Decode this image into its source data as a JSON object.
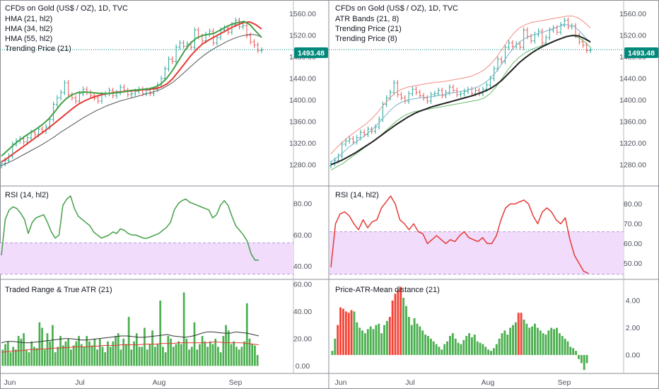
{
  "colors": {
    "up": "#26a69a",
    "down": "#ef5350",
    "green": "#43a047",
    "red": "#e53935",
    "grey": "#555555",
    "black": "#222222",
    "lavender": "#f1dcfb",
    "dashed": "#b59ad8",
    "price": "#00897b",
    "bar_green": "#4caf50",
    "bar_red": "#f44336"
  },
  "x_labels": [
    "Jun",
    "Jul",
    "Aug",
    "Sep"
  ],
  "panels": {
    "left_price": {
      "legend": [
        "CFDs on Gold (US$ / OZ), 1D, TVC",
        "HMA (21, hl2)",
        "HMA (34, hl2)",
        "HMA (55, hl2)",
        "Trending Price (21)"
      ],
      "price_tag": "1493.48"
    },
    "right_price": {
      "legend": [
        "CFDs on Gold (US$ / OZ), 1D, TVC",
        "ATR Bands (21, 8)",
        "Trending Price (21)",
        "Trending Price (8)"
      ],
      "price_tag": "1493.48"
    },
    "left_rsi": {
      "legend": [
        "RSI (14, hl2)"
      ]
    },
    "right_rsi": {
      "legend": [
        "RSI (14, hl2)"
      ]
    },
    "left_atr": {
      "legend": [
        "Traded Range & True ATR (21)"
      ]
    },
    "right_dist": {
      "legend": [
        "Price-ATR-Mean distance (21)"
      ]
    }
  },
  "chart_data": [
    {
      "type": "line",
      "panel": "left_price",
      "ylim": [
        1260,
        1570
      ],
      "yticks": [
        "1560.00",
        "1520.00",
        "1480.00",
        "1440.00",
        "1400.00",
        "1360.00",
        "1320.00",
        "1280.00"
      ],
      "closes": [
        1282,
        1288,
        1296,
        1318,
        1324,
        1328,
        1322,
        1330,
        1340,
        1336,
        1346,
        1342,
        1350,
        1364,
        1392,
        1404,
        1414,
        1432,
        1410,
        1404,
        1398,
        1412,
        1420,
        1414,
        1408,
        1404,
        1398,
        1410,
        1412,
        1418,
        1408,
        1414,
        1424,
        1418,
        1410,
        1412,
        1416,
        1420,
        1412,
        1418,
        1412,
        1420,
        1428,
        1440,
        1458,
        1476,
        1472,
        1498,
        1506,
        1500,
        1504,
        1498,
        1530,
        1518,
        1510,
        1522,
        1528,
        1506,
        1516,
        1530,
        1534,
        1526,
        1540,
        1548,
        1536,
        1538,
        1520,
        1508,
        1502,
        1492,
        1493
      ],
      "series": [
        {
          "name": "HMA (21, hl2)",
          "values": [
            1296,
            1306,
            1316,
            1325,
            1333,
            1340,
            1347,
            1355,
            1365,
            1378,
            1392,
            1403,
            1410,
            1414,
            1415,
            1414,
            1413,
            1412,
            1412,
            1413,
            1414,
            1416,
            1418,
            1419,
            1420,
            1421,
            1424,
            1430,
            1441,
            1456,
            1474,
            1492,
            1506,
            1515,
            1520,
            1522,
            1524,
            1530,
            1536,
            1541,
            1544,
            1546,
            1540,
            1528,
            1516
          ]
        },
        {
          "name": "HMA (34, hl2)",
          "values": [
            1285,
            1292,
            1300,
            1308,
            1316,
            1324,
            1332,
            1340,
            1348,
            1357,
            1366,
            1375,
            1384,
            1392,
            1398,
            1403,
            1407,
            1410,
            1412,
            1414,
            1415,
            1416,
            1417,
            1418,
            1419,
            1420,
            1421,
            1424,
            1430,
            1440,
            1454,
            1468,
            1482,
            1494,
            1504,
            1511,
            1517,
            1523,
            1529,
            1535,
            1540,
            1544,
            1545,
            1540,
            1532
          ]
        },
        {
          "name": "HMA (55, hl2)",
          "values": [
            1278,
            1283,
            1288,
            1294,
            1300,
            1306,
            1312,
            1318,
            1325,
            1332,
            1340,
            1347,
            1354,
            1361,
            1368,
            1374,
            1380,
            1385,
            1390,
            1394,
            1398,
            1401,
            1404,
            1407,
            1410,
            1413,
            1416,
            1420,
            1426,
            1433,
            1442,
            1452,
            1462,
            1472,
            1481,
            1489,
            1496,
            1502,
            1508,
            1513,
            1517,
            1520,
            1522,
            1521,
            1517
          ]
        }
      ]
    },
    {
      "type": "line",
      "panel": "right_price",
      "ylim": [
        1260,
        1570
      ],
      "yticks": [
        "1560.00",
        "1520.00",
        "1480.00",
        "1440.00",
        "1400.00",
        "1360.00",
        "1320.00",
        "1280.00"
      ],
      "series": [
        {
          "name": "ATR Bands upper",
          "values": [
            1300,
            1312,
            1322,
            1332,
            1340,
            1348,
            1356,
            1366,
            1378,
            1392,
            1404,
            1414,
            1420,
            1424,
            1426,
            1428,
            1430,
            1432,
            1433,
            1434,
            1436,
            1438,
            1440,
            1442,
            1445,
            1450,
            1456,
            1466,
            1478,
            1494,
            1510,
            1524,
            1534,
            1540,
            1544,
            1546,
            1548,
            1550,
            1552,
            1554,
            1556,
            1556,
            1552,
            1544,
            1534
          ]
        },
        {
          "name": "ATR Bands lower",
          "values": [
            1270,
            1276,
            1282,
            1290,
            1298,
            1306,
            1314,
            1322,
            1330,
            1340,
            1350,
            1360,
            1368,
            1374,
            1378,
            1380,
            1382,
            1384,
            1386,
            1388,
            1390,
            1392,
            1394,
            1396,
            1398,
            1400,
            1404,
            1412,
            1424,
            1440,
            1456,
            1470,
            1480,
            1488,
            1494,
            1498,
            1502,
            1506,
            1510,
            1514,
            1518,
            1520,
            1516,
            1508,
            1498
          ]
        },
        {
          "name": "Trending Price (21)",
          "values": [
            1280,
            1284,
            1289,
            1295,
            1301,
            1308,
            1315,
            1322,
            1330,
            1338,
            1346,
            1354,
            1361,
            1368,
            1374,
            1379,
            1383,
            1387,
            1390,
            1393,
            1396,
            1399,
            1402,
            1405,
            1408,
            1412,
            1416,
            1421,
            1428,
            1437,
            1448,
            1459,
            1470,
            1479,
            1487,
            1494,
            1500,
            1505,
            1510,
            1514,
            1518,
            1520,
            1519,
            1514,
            1508
          ]
        },
        {
          "name": "Trending Price (8)",
          "values": [
            1285,
            1293,
            1302,
            1312,
            1320,
            1328,
            1336,
            1345,
            1356,
            1368,
            1380,
            1390,
            1396,
            1400,
            1402,
            1404,
            1405,
            1406,
            1408,
            1410,
            1412,
            1414,
            1416,
            1418,
            1421,
            1425,
            1431,
            1440,
            1452,
            1467,
            1483,
            1497,
            1508,
            1515,
            1520,
            1523,
            1526,
            1530,
            1534,
            1538,
            1540,
            1538,
            1530,
            1518,
            1506
          ]
        }
      ]
    },
    {
      "type": "line",
      "panel": "left_rsi",
      "ylim": [
        33,
        90
      ],
      "yticks": [
        "80.00",
        "60.00",
        "40.00"
      ],
      "band": [
        35,
        55
      ],
      "series": [
        {
          "name": "RSI (14, hl2)",
          "values": [
            47,
            70,
            76,
            78,
            77,
            74,
            70,
            61,
            68,
            71,
            72,
            73,
            68,
            62,
            58,
            60,
            79,
            83,
            85,
            77,
            72,
            70,
            68,
            66,
            62,
            60,
            58,
            59,
            60,
            62,
            61,
            64,
            63,
            61,
            60,
            60,
            59,
            58,
            58,
            59,
            60,
            61,
            63,
            65,
            68,
            76,
            80,
            82,
            83,
            81,
            80,
            79,
            78,
            77,
            76,
            71,
            73,
            79,
            82,
            79,
            72,
            66,
            63,
            60,
            56,
            48,
            44,
            44
          ]
        }
      ]
    },
    {
      "type": "line",
      "panel": "right_rsi",
      "ylim": [
        43,
        88
      ],
      "yticks": [
        "80.00",
        "70.00",
        "60.00",
        "50.00"
      ],
      "band": [
        44.5,
        66
      ],
      "series": [
        {
          "name": "RSI (14, hl2)",
          "values": [
            48,
            70,
            75,
            76,
            74,
            70,
            67,
            72,
            68,
            71,
            72,
            78,
            81,
            84,
            80,
            72,
            70,
            67,
            70,
            66,
            65,
            60,
            62,
            64,
            62,
            60,
            62,
            61,
            64,
            66,
            63,
            62,
            61,
            63,
            60,
            60,
            64,
            72,
            78,
            80,
            80,
            81,
            82,
            80,
            74,
            70,
            76,
            78,
            76,
            72,
            70,
            73,
            62,
            54,
            50,
            46,
            45
          ]
        }
      ]
    },
    {
      "type": "bar",
      "panel": "left_atr",
      "ylim": [
        -4,
        62
      ],
      "yticks": [
        "60.00",
        "40.00",
        "20.00",
        "0.00"
      ],
      "values": [
        12,
        16,
        18,
        10,
        14,
        12,
        22,
        20,
        24,
        12,
        10,
        18,
        14,
        13,
        32,
        28,
        12,
        24,
        18,
        30,
        10,
        14,
        22,
        15,
        18,
        20,
        12,
        15,
        18,
        22,
        16,
        14,
        22,
        18,
        15,
        20,
        12,
        20,
        14,
        10,
        18,
        14,
        18,
        22,
        24,
        12,
        20,
        16,
        36,
        12,
        18,
        24,
        14,
        14,
        28,
        12,
        16,
        26,
        14,
        16,
        48,
        14,
        10,
        22,
        20,
        14,
        16,
        18,
        16,
        54,
        20,
        12,
        14,
        32,
        12,
        16,
        22,
        18,
        14,
        18,
        16,
        20,
        14,
        10,
        22,
        30,
        26,
        16,
        18,
        14,
        12,
        14,
        18,
        46,
        20,
        16,
        15,
        8
      ],
      "series": [
        {
          "name": "True ATR (21)",
          "values": [
            17,
            18,
            18,
            17.5,
            17,
            17,
            17.5,
            18,
            18.5,
            19,
            19.5,
            20,
            20,
            19.5,
            19,
            19,
            19.5,
            20,
            20.5,
            21,
            21.5,
            22,
            22,
            21.5,
            21,
            21,
            21.5,
            22,
            22.5,
            23,
            22,
            21.5,
            21,
            21.5,
            22.5,
            24,
            25,
            25,
            24.5,
            24,
            24,
            25,
            24.5,
            24,
            23,
            22
          ]
        },
        {
          "name": "Range average",
          "values": [
            10,
            10.5,
            11,
            11,
            11.5,
            12,
            12,
            12.5,
            12.5,
            13,
            13,
            13.5,
            13.5,
            14,
            14,
            14,
            14.5,
            14.5,
            15,
            15,
            15,
            15.5,
            15.5,
            15.5,
            15.5,
            16,
            16,
            16,
            16.5,
            16.5,
            16.5,
            17,
            17,
            17,
            17,
            17,
            17,
            17.5,
            17.5,
            17,
            17,
            17,
            17,
            16.5,
            16,
            15.5
          ]
        }
      ]
    },
    {
      "type": "bar",
      "panel": "right_dist",
      "ylim": [
        -1.2,
        5.4
      ],
      "yticks": [
        "4.00",
        "2.00",
        "0.00"
      ],
      "values": [
        0.3,
        1.2,
        2.2,
        3.5,
        3.4,
        3.2,
        3.1,
        3.3,
        3.2,
        2.4,
        2.0,
        1.8,
        1.6,
        1.9,
        2.1,
        1.9,
        2.2,
        2.3,
        1.6,
        2.2,
        2.5,
        2.8,
        4.0,
        4.5,
        4.8,
        5.0,
        4.2,
        3.6,
        2.8,
        2.2,
        2.7,
        2.3,
        2.1,
        1.8,
        1.5,
        1.4,
        1.2,
        1.0,
        0.8,
        0.6,
        0.4,
        0.8,
        1.0,
        1.4,
        1.6,
        1.2,
        0.9,
        0.8,
        1.1,
        1.4,
        1.6,
        1.3,
        1.5,
        1.0,
        0.9,
        0.8,
        0.6,
        0.4,
        0.3,
        0.5,
        0.8,
        1.2,
        1.6,
        1.8,
        1.5,
        2.0,
        2.2,
        2.4,
        3.1,
        3.1,
        2.6,
        2.3,
        2.0,
        2.1,
        2.3,
        2.0,
        1.8,
        1.6,
        1.5,
        1.8,
        2.0,
        1.9,
        2.0,
        1.6,
        1.4,
        1.2,
        1.0,
        0.6,
        0.5,
        0.3,
        -0.3,
        -0.6,
        -1.1,
        -0.6
      ],
      "red_indices": [
        2,
        3,
        4,
        5,
        6,
        7,
        21,
        22,
        23,
        24,
        25,
        68,
        69
      ]
    }
  ]
}
